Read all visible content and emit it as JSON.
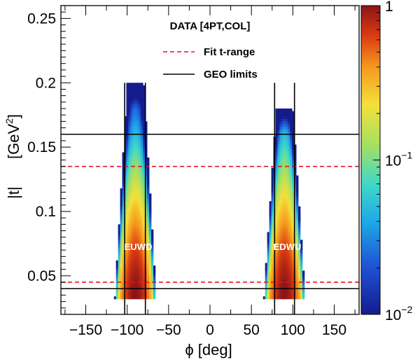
{
  "chart_data": {
    "type": "heatmap",
    "xlabel": "ϕ [deg]",
    "ylabel": "|t|",
    "ylabel_unit": "[GeV",
    "ylabel_unit_sup": "2",
    "ylabel_unit_end": "]",
    "xlim": [
      -180,
      180
    ],
    "ylim": [
      0.02,
      0.26
    ],
    "x_ticks": [
      -150,
      -100,
      -50,
      0,
      50,
      100,
      150
    ],
    "x_tick_labels": [
      "−150",
      "−100",
      "−50",
      "0",
      "50",
      "100",
      "150"
    ],
    "y_ticks": [
      0.05,
      0.1,
      0.15,
      0.2,
      0.25
    ],
    "y_tick_labels": [
      "0.05",
      "0.1",
      "0.15",
      "0.2",
      "0.25"
    ],
    "colorbar": {
      "scale": "log",
      "range": [
        0.01,
        1
      ],
      "tick_labels": [
        {
          "value": 1,
          "base": "1",
          "exp": ""
        },
        {
          "value": 0.1,
          "base": "10",
          "exp": "−1"
        },
        {
          "value": 0.01,
          "base": "10",
          "exp": "−2"
        }
      ]
    },
    "legend": {
      "title": "DATA [4PT,COL]",
      "entries": [
        {
          "label": "Fit t-range",
          "style": "dashed",
          "color": "#e8141c"
        },
        {
          "label": "GEO limits",
          "style": "solid",
          "color": "#000000"
        }
      ]
    },
    "fit_t_range": [
      0.045,
      0.135
    ],
    "geo_t_limits": [
      0.04,
      0.16
    ],
    "regions": [
      {
        "label": "EUWD",
        "phi_center": -90,
        "phi_limits": [
          -103,
          -78
        ],
        "t_min": 0.032,
        "t_max": 0.2
      },
      {
        "label": "EDWU",
        "phi_center": 90,
        "phi_limits": [
          78,
          102
        ],
        "t_min": 0.032,
        "t_max": 0.18
      }
    ]
  }
}
